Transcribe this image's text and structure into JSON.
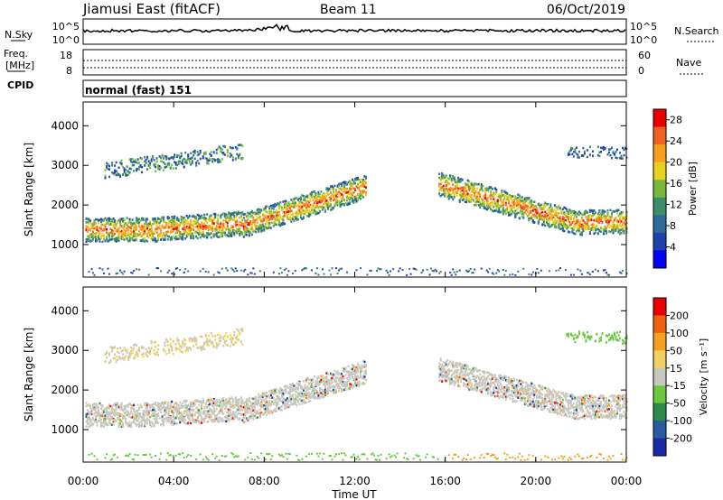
{
  "header": {
    "title": "Jiamusi East (fitACF)",
    "beam": "Beam 11",
    "date": "06/Oct/2019"
  },
  "noise_panel": {
    "left_label": "N.Sky",
    "right_label": "N.Search",
    "ticks": [
      "10^5",
      "10^0"
    ]
  },
  "freq_panel": {
    "left_label_line1": "Freq.",
    "left_label_line2": "[MHz]",
    "left_ticks": [
      "18",
      "8"
    ],
    "right_label": "Nave",
    "right_ticks": [
      "60",
      "0"
    ]
  },
  "cpid": {
    "label": "CPID",
    "value": "normal (fast) 151"
  },
  "chart_data": [
    {
      "type": "heatmap",
      "title": "",
      "ylabel": "Slant Range [km]",
      "xlabel": "",
      "xlim": [
        0,
        24
      ],
      "ylim": [
        180,
        4600
      ],
      "x_ticks": [
        "00:00",
        "04:00",
        "08:00",
        "12:00",
        "16:00",
        "20:00",
        "00:00"
      ],
      "y_ticks": [
        1000,
        2000,
        3000,
        4000
      ],
      "colorbar": {
        "label": "Power [dB]",
        "ticks": [
          4,
          8,
          12,
          16,
          20,
          24,
          28
        ],
        "range": [
          0,
          30
        ],
        "colors": [
          "#0000ff",
          "#2040b0",
          "#2e6a9a",
          "#3d8c6a",
          "#7ab83a",
          "#e8d020",
          "#f7a020",
          "#f06020",
          "#e80000"
        ]
      }
    },
    {
      "type": "heatmap",
      "title": "",
      "ylabel": "Slant Range [km]",
      "xlabel": "Time UT",
      "xlim": [
        0,
        24
      ],
      "ylim": [
        180,
        4600
      ],
      "x_ticks": [
        "00:00",
        "04:00",
        "08:00",
        "12:00",
        "16:00",
        "20:00",
        "00:00"
      ],
      "y_ticks": [
        1000,
        2000,
        3000,
        4000
      ],
      "colorbar": {
        "label": "Velocity [m s⁻¹]",
        "ticks": [
          200,
          100,
          50,
          15,
          -15,
          -50,
          -100,
          -200
        ],
        "range": [
          -250,
          250
        ],
        "colors": [
          "#1a2aa8",
          "#2a5aa0",
          "#2e8a4a",
          "#6cc840",
          "#c8c8c0",
          "#f0d060",
          "#f4a020",
          "#f06010",
          "#e80000"
        ]
      }
    }
  ]
}
